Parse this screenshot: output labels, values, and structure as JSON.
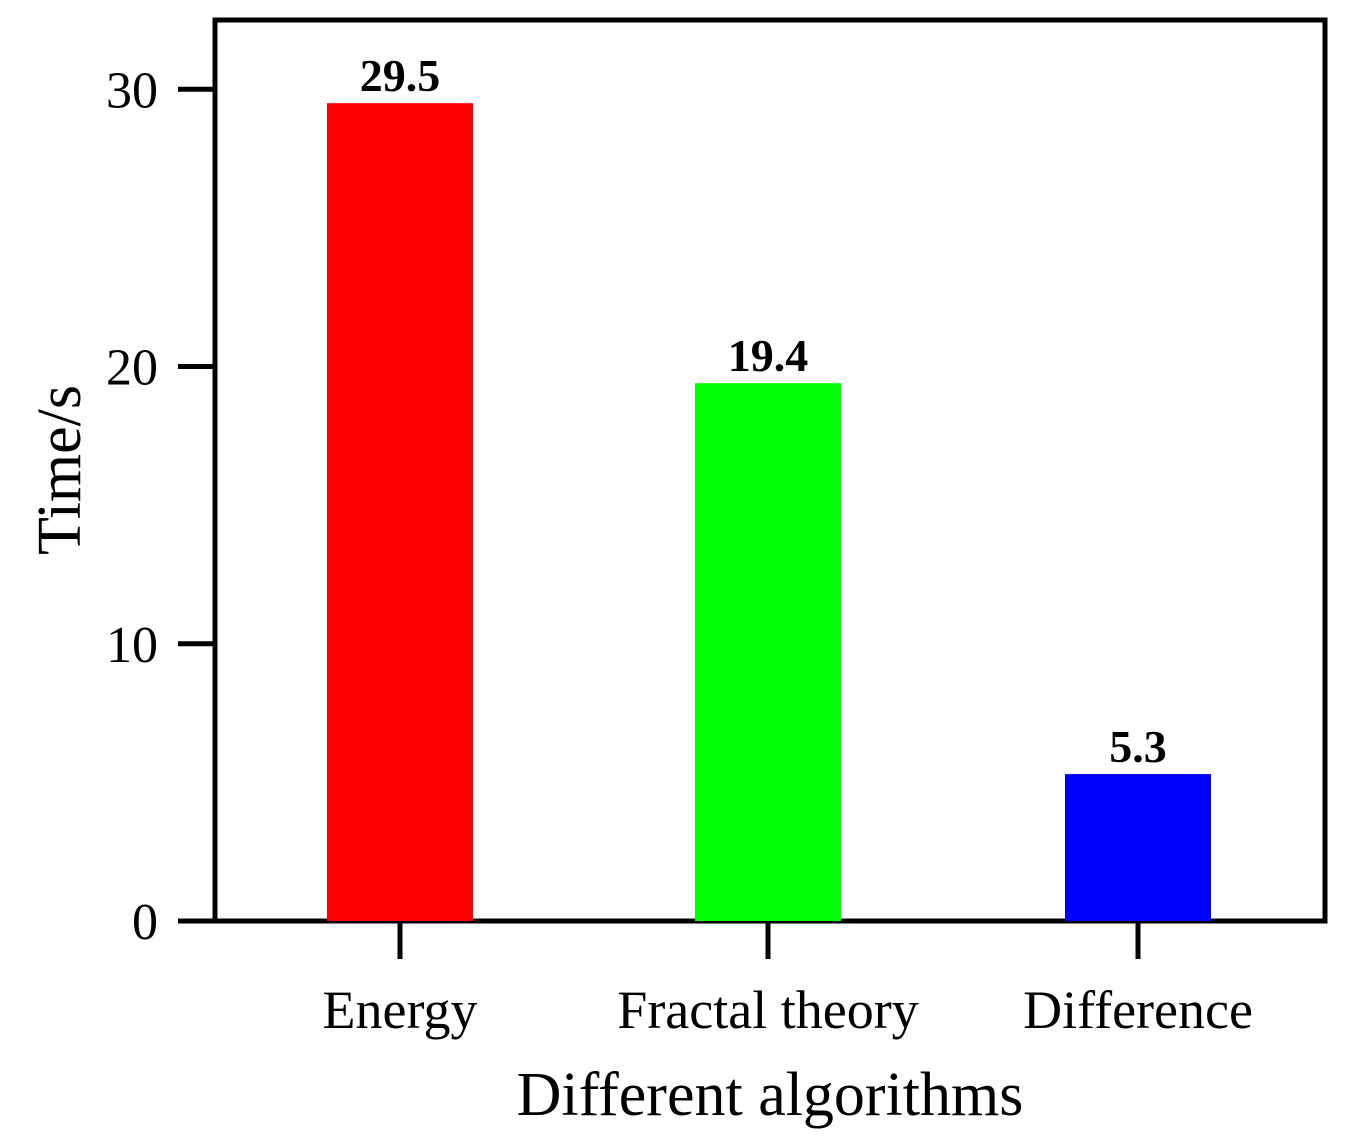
{
  "chart_data": {
    "type": "bar",
    "title": "",
    "xlabel": "Different algorithms",
    "ylabel": "Time/s",
    "categories": [
      "Energy",
      "Fractal theory",
      "Difference"
    ],
    "values": [
      29.5,
      19.4,
      5.3
    ],
    "value_labels": [
      "29.5",
      "19.4",
      "5.3"
    ],
    "bar_colors": [
      "#ff0000",
      "#00ff00",
      "#0000ff"
    ],
    "ylim": [
      0,
      32.5
    ],
    "yticks": [
      0,
      10,
      20,
      30
    ],
    "ytick_labels": [
      "0",
      "10",
      "20",
      "30"
    ],
    "grid": false,
    "legend": "none"
  }
}
